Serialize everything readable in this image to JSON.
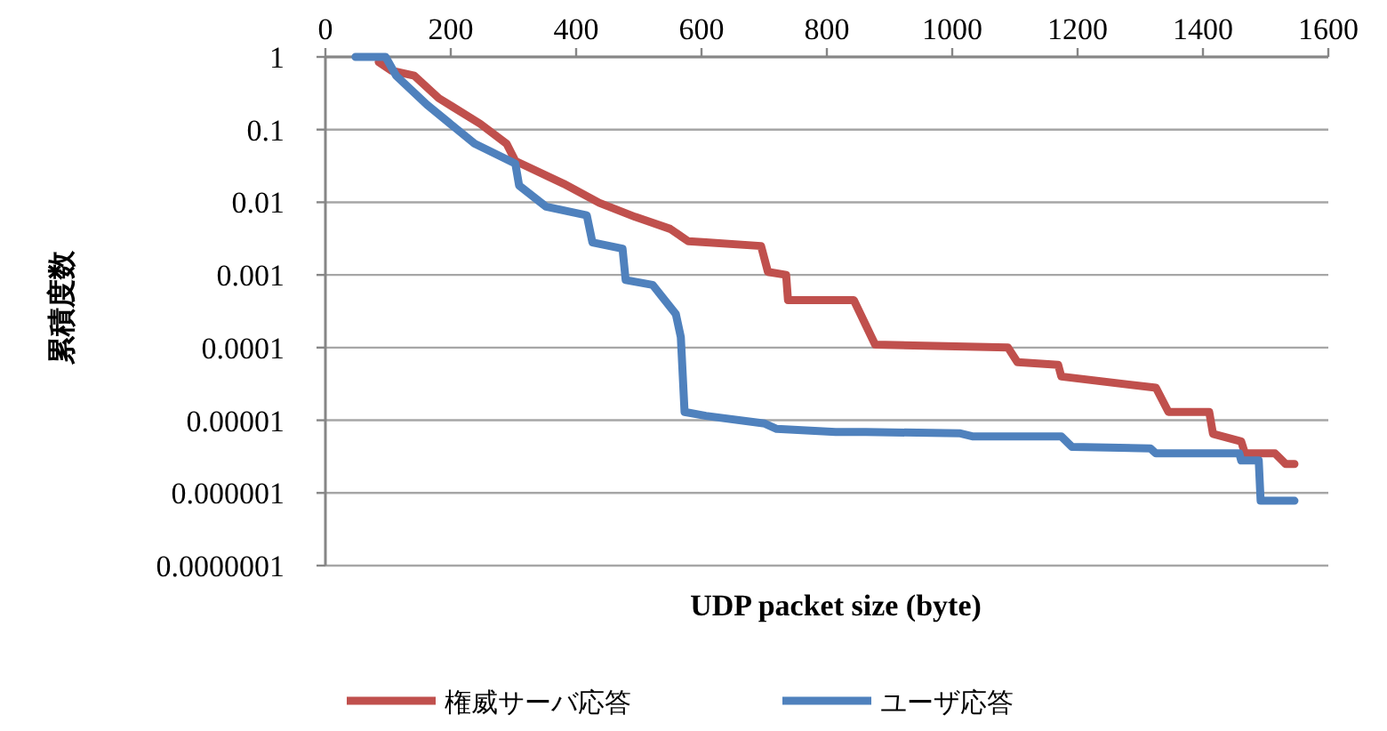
{
  "chart_data": {
    "type": "line",
    "xlabel": "UDP packet size (byte)",
    "ylabel": "累積度数",
    "log": "y",
    "grid": "y",
    "legend": "bottom",
    "marker": "none",
    "line_style": "solid",
    "xlim": [
      0,
      1600
    ],
    "xticks": [
      0,
      200,
      400,
      600,
      800,
      1000,
      1200,
      1400,
      1600
    ],
    "ylim": [
      1e-07,
      1
    ],
    "yticks": [
      1,
      0.1,
      0.01,
      0.001,
      0.0001,
      {
        "value": 1e-05,
        "label": "0.00001"
      },
      {
        "value": 1e-06,
        "label": "0.000001"
      },
      {
        "value": 1e-07,
        "label": "0.0000001"
      }
    ],
    "series": [
      {
        "name": "権威サーバ応答",
        "color": "#c0504d",
        "x": [
          85,
          105,
          142,
          181,
          247,
          289,
          303,
          380,
          437,
          494,
          550,
          579,
          607,
          695,
          706,
          735,
          738,
          757,
          843,
          877,
          1089,
          1104,
          1169,
          1174,
          1325,
          1345,
          1410,
          1416,
          1461,
          1467,
          1515,
          1532,
          1546
        ],
        "values": [
          0.85,
          0.65,
          0.55,
          0.27,
          0.12,
          0.064,
          0.037,
          0.018,
          0.0098,
          0.0063,
          0.0043,
          0.0029,
          0.0028,
          0.0025,
          0.0011,
          0.001,
          0.00045,
          0.00045,
          0.00045,
          0.00011,
          0.0001,
          6.3e-05,
          5.8e-05,
          4e-05,
          2.8e-05,
          1.3e-05,
          1.3e-05,
          6.5e-06,
          5.1e-06,
          3.5e-06,
          3.5e-06,
          2.5e-06,
          2.5e-06
        ]
      },
      {
        "name": "ユーザ応答",
        "color": "#4f81bd",
        "x": [
          48,
          96,
          113,
          162,
          238,
          303,
          309,
          352,
          417,
          426,
          474,
          479,
          522,
          559,
          567,
          573,
          607,
          701,
          720,
          814,
          862,
          1013,
          1032,
          1174,
          1191,
          1316,
          1325,
          1458,
          1461,
          1489,
          1492,
          1546
        ],
        "values": [
          1,
          1,
          0.55,
          0.22,
          0.064,
          0.034,
          0.017,
          0.0087,
          0.0066,
          0.0028,
          0.0023,
          0.00085,
          0.00073,
          0.00029,
          0.00014,
          1.3e-05,
          1.15e-05,
          9e-06,
          7.6e-06,
          6.9e-06,
          6.9e-06,
          6.6e-06,
          6e-06,
          6e-06,
          4.3e-06,
          4.1e-06,
          3.5e-06,
          3.5e-06,
          2.8e-06,
          2.8e-06,
          7.8e-07,
          7.8e-07
        ]
      }
    ]
  }
}
